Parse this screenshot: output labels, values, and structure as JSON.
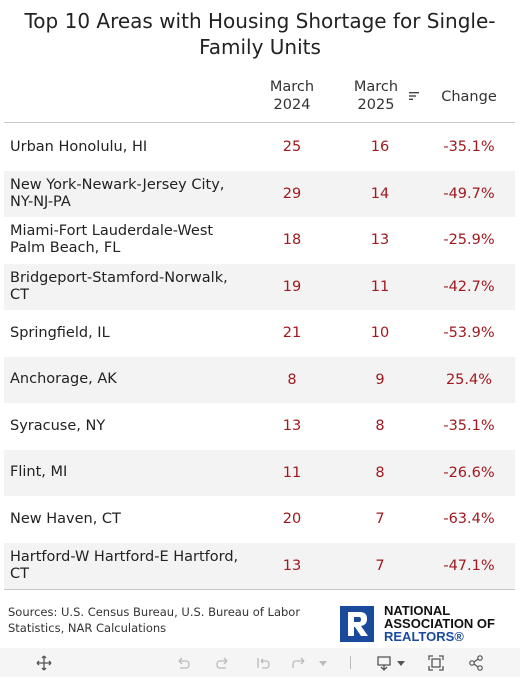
{
  "chart_data": {
    "type": "table",
    "title": "Top 10 Areas with Housing Shortage for Single-Family Units",
    "columns": [
      "",
      "March 2024",
      "March 2025",
      "Change"
    ],
    "rows": [
      {
        "area": "Urban Honolulu, HI",
        "march_2024": "25",
        "march_2025": "16",
        "change": "-35.1%"
      },
      {
        "area": "New York-Newark-Jersey City, NY-NJ-PA",
        "march_2024": "29",
        "march_2025": "14",
        "change": "-49.7%"
      },
      {
        "area": "Miami-Fort Lauderdale-West Palm Beach, FL",
        "march_2024": "18",
        "march_2025": "13",
        "change": "-25.9%"
      },
      {
        "area": "Bridgeport-Stamford-Norwalk, CT",
        "march_2024": "19",
        "march_2025": "11",
        "change": "-42.7%"
      },
      {
        "area": "Springfield, IL",
        "march_2024": "21",
        "march_2025": "10",
        "change": "-53.9%"
      },
      {
        "area": "Anchorage, AK",
        "march_2024": "8",
        "march_2025": "9",
        "change": "25.4%"
      },
      {
        "area": "Syracuse, NY",
        "march_2024": "13",
        "march_2025": "8",
        "change": "-35.1%"
      },
      {
        "area": "Flint, MI",
        "march_2024": "11",
        "march_2025": "8",
        "change": "-26.6%"
      },
      {
        "area": "New Haven, CT",
        "march_2024": "20",
        "march_2025": "7",
        "change": "-63.4%"
      },
      {
        "area": "Hartford-W Hartford-E Hartford, CT",
        "march_2024": "13",
        "march_2025": "7",
        "change": "-47.1%"
      }
    ],
    "sort": {
      "column": "March 2025",
      "direction": "descending"
    },
    "value_color": "#a0191e",
    "row_shading": "#f3f3f3"
  },
  "header": {
    "col_2024_line1": "March",
    "col_2024_line2": "2024",
    "col_2025_line1": "March",
    "col_2025_line2": "2025",
    "col_change": "Change",
    "sort_icon": "sort-descending-icon"
  },
  "footer": {
    "sources": "Sources: U.S. Census Bureau, U.S. Bureau of Labor Statistics, NAR Calculations",
    "logo_line1": "NATIONAL",
    "logo_line2": "ASSOCIATION OF",
    "logo_line3": "REALTORS®",
    "logo_color": "#1a4a9c"
  },
  "toolbar": {
    "icons": [
      "move-icon",
      "undo-icon",
      "redo-icon",
      "reset-icon",
      "forward-icon",
      "dropdown-icon",
      "download-icon",
      "fullscreen-icon",
      "share-icon"
    ]
  }
}
